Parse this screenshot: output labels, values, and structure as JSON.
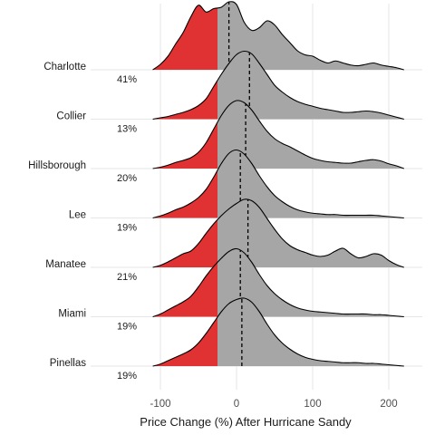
{
  "chart_data": {
    "type": "ridgeline",
    "xlabel": "Price Change (%) After Hurricane Sandy",
    "xlim": [
      -130,
      235
    ],
    "x_ticks": [
      -100,
      0,
      100,
      200
    ],
    "x_tick_labels": [
      "-100",
      "0",
      "100",
      "200"
    ],
    "threshold": -25,
    "grid": "vertical-major",
    "colors": {
      "below": "#e03232",
      "above": "#a6a6a6",
      "line": "#000000",
      "grid": "#e6e6e6"
    },
    "x": [
      -110,
      -100,
      -90,
      -80,
      -70,
      -60,
      -50,
      -40,
      -30,
      -20,
      -10,
      0,
      10,
      20,
      30,
      40,
      50,
      60,
      70,
      80,
      90,
      100,
      110,
      120,
      130,
      140,
      150,
      160,
      170,
      180,
      190,
      200,
      210,
      220
    ],
    "series": [
      {
        "name": "Charlotte",
        "percent_label": "41%",
        "median": -10,
        "values": [
          0.0,
          0.08,
          0.2,
          0.38,
          0.55,
          0.78,
          0.95,
          0.85,
          0.9,
          0.92,
          1.0,
          0.96,
          0.7,
          0.58,
          0.62,
          0.72,
          0.66,
          0.52,
          0.4,
          0.28,
          0.22,
          0.2,
          0.14,
          0.1,
          0.13,
          0.1,
          0.07,
          0.06,
          0.08,
          0.1,
          0.07,
          0.05,
          0.03,
          0.0
        ]
      },
      {
        "name": "Collier",
        "percent_label": "13%",
        "median": 17,
        "values": [
          0.0,
          0.02,
          0.04,
          0.07,
          0.1,
          0.14,
          0.2,
          0.3,
          0.48,
          0.66,
          0.82,
          0.95,
          1.0,
          0.96,
          0.82,
          0.66,
          0.5,
          0.4,
          0.32,
          0.26,
          0.22,
          0.19,
          0.16,
          0.14,
          0.12,
          0.1,
          0.1,
          0.11,
          0.12,
          0.11,
          0.09,
          0.06,
          0.03,
          0.0
        ]
      },
      {
        "name": "Hillsborough",
        "percent_label": "20%",
        "median": 12,
        "values": [
          0.0,
          0.02,
          0.05,
          0.09,
          0.12,
          0.16,
          0.24,
          0.38,
          0.58,
          0.78,
          0.93,
          1.0,
          0.97,
          0.86,
          0.7,
          0.55,
          0.44,
          0.37,
          0.32,
          0.26,
          0.2,
          0.15,
          0.12,
          0.1,
          0.09,
          0.08,
          0.08,
          0.1,
          0.12,
          0.13,
          0.11,
          0.07,
          0.04,
          0.0
        ]
      },
      {
        "name": "Lee",
        "percent_label": "19%",
        "median": 5,
        "values": [
          0.0,
          0.03,
          0.07,
          0.12,
          0.16,
          0.22,
          0.3,
          0.42,
          0.6,
          0.8,
          0.95,
          1.0,
          0.94,
          0.8,
          0.62,
          0.46,
          0.33,
          0.24,
          0.17,
          0.12,
          0.09,
          0.07,
          0.06,
          0.05,
          0.05,
          0.04,
          0.04,
          0.04,
          0.04,
          0.04,
          0.03,
          0.02,
          0.01,
          0.0
        ]
      },
      {
        "name": "Manatee",
        "percent_label": "21%",
        "median": 15,
        "values": [
          0.0,
          0.03,
          0.08,
          0.14,
          0.2,
          0.24,
          0.35,
          0.5,
          0.64,
          0.76,
          0.86,
          0.94,
          1.0,
          0.98,
          0.88,
          0.72,
          0.56,
          0.42,
          0.32,
          0.26,
          0.22,
          0.18,
          0.16,
          0.18,
          0.24,
          0.28,
          0.2,
          0.14,
          0.16,
          0.2,
          0.18,
          0.1,
          0.04,
          0.0
        ]
      },
      {
        "name": "Miami",
        "percent_label": "19%",
        "median": 5,
        "values": [
          0.0,
          0.04,
          0.1,
          0.16,
          0.22,
          0.3,
          0.44,
          0.6,
          0.74,
          0.86,
          0.96,
          1.0,
          0.94,
          0.8,
          0.62,
          0.46,
          0.34,
          0.25,
          0.18,
          0.13,
          0.1,
          0.08,
          0.07,
          0.06,
          0.05,
          0.04,
          0.04,
          0.04,
          0.04,
          0.03,
          0.03,
          0.02,
          0.01,
          0.0
        ]
      },
      {
        "name": "Pinellas",
        "percent_label": "19%",
        "median": 7,
        "values": [
          0.0,
          0.03,
          0.08,
          0.13,
          0.18,
          0.24,
          0.34,
          0.48,
          0.64,
          0.8,
          0.92,
          0.98,
          1.0,
          0.94,
          0.8,
          0.62,
          0.46,
          0.34,
          0.25,
          0.18,
          0.13,
          0.1,
          0.08,
          0.07,
          0.06,
          0.05,
          0.05,
          0.05,
          0.04,
          0.04,
          0.03,
          0.02,
          0.01,
          0.0
        ]
      }
    ]
  }
}
